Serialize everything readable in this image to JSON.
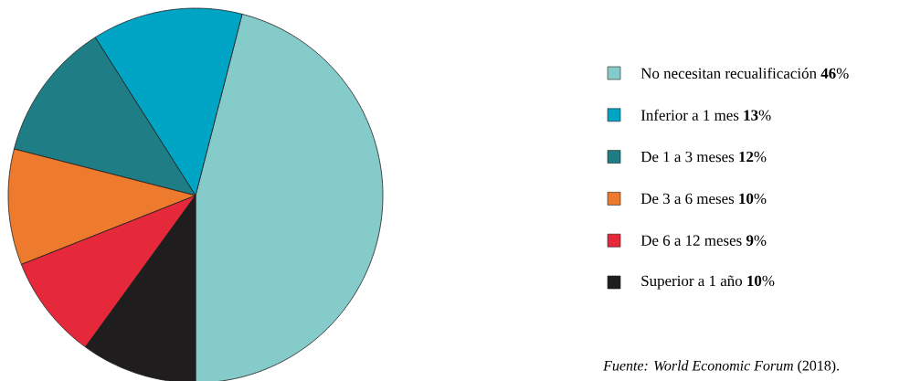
{
  "chart_data": {
    "type": "pie",
    "categories": [
      "No necesitan recualificación",
      "Inferior a 1 mes",
      "De 1 a 3 meses",
      "De 3 a 6 meses",
      "De 6 a 12 meses",
      "Superior a 1 año"
    ],
    "values": [
      46,
      13,
      12,
      10,
      9,
      10
    ],
    "value_labels": [
      "**46**%",
      "**13**%",
      "**12**%",
      "**10**%",
      "**9**%",
      "**10**%"
    ],
    "colors": [
      "#84cbc9",
      "#00a5c5",
      "#1f7d85",
      "#ed7a2d",
      "#e6283b",
      "#1f1d1e"
    ],
    "legend": "right",
    "annotations": [
      "*Fuente: World Economic Forum* (2018)."
    ]
  }
}
